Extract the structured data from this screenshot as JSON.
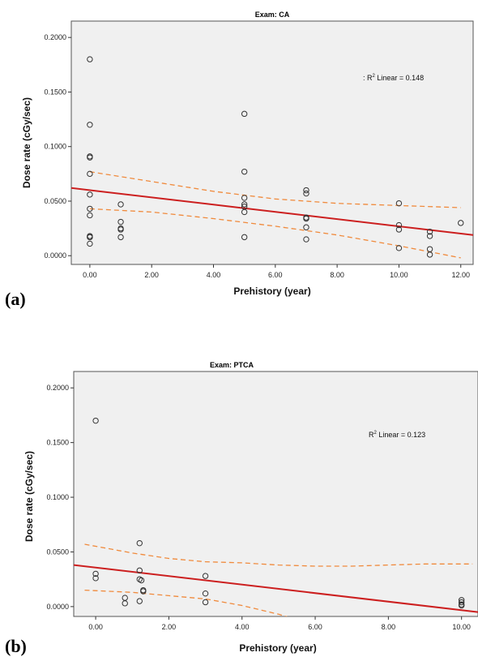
{
  "chart_data": [
    {
      "type": "scatter",
      "panel_label": "(a)",
      "title": "Exam: CA",
      "xlabel": "Prehistory (year)",
      "ylabel": "Dose rate (cGy/sec)",
      "xlim": [
        -0.6,
        12.4
      ],
      "ylim": [
        -0.008,
        0.215
      ],
      "xticks": [
        0,
        2,
        4,
        6,
        8,
        10,
        12
      ],
      "xtick_labels": [
        "0.00",
        "2.00",
        "4.00",
        "6.00",
        "8.00",
        "10.00",
        "12.00"
      ],
      "yticks": [
        0,
        0.05,
        0.1,
        0.15,
        0.2
      ],
      "ytick_labels": [
        "0.0000",
        "0.0500",
        "0.1000",
        "0.1500",
        "0.2000"
      ],
      "annotation": {
        "prefix": ": R",
        "sup": "2",
        "text": " Linear = 0.148"
      },
      "fit_line": {
        "x": [
          -0.6,
          12.4
        ],
        "y": [
          0.062,
          0.019
        ],
        "color": "#cc1f1f"
      },
      "ci_lower": {
        "x": [
          0,
          2,
          4,
          6,
          8,
          10,
          12
        ],
        "y": [
          0.043,
          0.04,
          0.034,
          0.027,
          0.019,
          0.009,
          -0.002
        ],
        "color": "#f08a3c"
      },
      "ci_upper": {
        "x": [
          0,
          2,
          4,
          6,
          8,
          10,
          12
        ],
        "y": [
          0.077,
          0.068,
          0.059,
          0.052,
          0.048,
          0.046,
          0.044
        ],
        "color": "#f08a3c"
      },
      "points": {
        "x": [
          0,
          0,
          0,
          0,
          0,
          0,
          0,
          0,
          0,
          0,
          0,
          0,
          1,
          1,
          1,
          1,
          1,
          5,
          5,
          5,
          5,
          5,
          5,
          5,
          7,
          7,
          7,
          7,
          7,
          7,
          10,
          10,
          10,
          10,
          11,
          11,
          11,
          11,
          12
        ],
        "y": [
          0.18,
          0.12,
          0.091,
          0.09,
          0.075,
          0.056,
          0.043,
          0.037,
          0.018,
          0.017,
          0.011,
          0.017,
          0.047,
          0.031,
          0.025,
          0.024,
          0.017,
          0.13,
          0.077,
          0.053,
          0.047,
          0.04,
          0.017,
          0.045,
          0.06,
          0.057,
          0.035,
          0.034,
          0.026,
          0.015,
          0.048,
          0.028,
          0.024,
          0.007,
          0.022,
          0.018,
          0.006,
          0.001,
          0.03
        ]
      }
    },
    {
      "type": "scatter",
      "panel_label": "(b)",
      "title": "Exam: PTCA",
      "xlabel": "Prehistory (year)",
      "ylabel": "Dose rate (cGy/sec)",
      "xlim": [
        -0.6,
        10.45
      ],
      "ylim": [
        -0.009,
        0.215
      ],
      "xticks": [
        0,
        2,
        4,
        6,
        8,
        10
      ],
      "xtick_labels": [
        "0.00",
        "2.00",
        "4.00",
        "6.00",
        "8.00",
        "10.00"
      ],
      "yticks": [
        0,
        0.05,
        0.1,
        0.15,
        0.2
      ],
      "ytick_labels": [
        "0.0000",
        "0.0500",
        "0.1000",
        "0.1500",
        "0.2000"
      ],
      "annotation": {
        "prefix": "R",
        "sup": "2",
        "text": " Linear = 0.123"
      },
      "fit_line": {
        "x": [
          -0.6,
          10.45
        ],
        "y": [
          0.038,
          -0.005
        ],
        "color": "#cc1f1f"
      },
      "ci_lower": {
        "x": [
          -0.3,
          1,
          2,
          3,
          4,
          5,
          5.8
        ],
        "y": [
          0.015,
          0.013,
          0.01,
          0.007,
          0.001,
          -0.007,
          -0.015
        ],
        "color": "#f08a3c"
      },
      "ci_upper": {
        "x": [
          -0.3,
          1,
          2,
          3,
          4,
          5,
          6,
          7,
          8,
          9,
          10.3
        ],
        "y": [
          0.057,
          0.049,
          0.044,
          0.041,
          0.04,
          0.038,
          0.037,
          0.037,
          0.038,
          0.039,
          0.039
        ],
        "color": "#f08a3c"
      },
      "points": {
        "x": [
          0,
          0,
          0,
          0.8,
          0.8,
          1.2,
          1.2,
          1.2,
          1.25,
          1.3,
          1.3,
          1.2,
          3,
          3,
          3,
          10,
          10,
          10,
          10
        ],
        "y": [
          0.17,
          0.03,
          0.026,
          0.008,
          0.003,
          0.058,
          0.033,
          0.025,
          0.024,
          0.015,
          0.014,
          0.005,
          0.028,
          0.012,
          0.004,
          0.006,
          0.004,
          0.002,
          0.001
        ]
      }
    }
  ]
}
